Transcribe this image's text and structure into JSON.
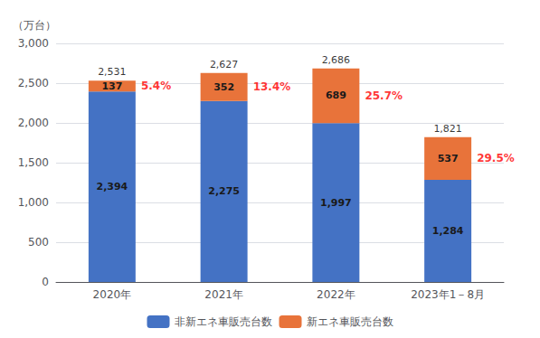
{
  "chart_data": {
    "type": "bar",
    "stacked": true,
    "ylabel": "（万台）",
    "categories": [
      "2020年",
      "2021年",
      "2022年",
      "2023年1－8月"
    ],
    "series": [
      {
        "name": "非新エネ車販売台数",
        "color": "#4472C4",
        "values": [
          2394,
          2275,
          1997,
          1284
        ],
        "value_labels": [
          "2,394",
          "2,275",
          "1,997",
          "1,284"
        ]
      },
      {
        "name": "新エネ車販売台数",
        "color": "#E8733A",
        "values": [
          137,
          352,
          689,
          537
        ],
        "value_labels": [
          "137",
          "352",
          "689",
          "537"
        ]
      }
    ],
    "totals": {
      "values": [
        2531,
        2627,
        2686,
        1821
      ],
      "value_labels": [
        "2,531",
        "2,627",
        "2,686",
        "1,821"
      ]
    },
    "share": {
      "values": [
        5.4,
        13.4,
        25.7,
        29.5
      ],
      "value_labels": [
        "5.4%",
        "13.4%",
        "25.7%",
        "29.5%"
      ],
      "color": "#FF0000"
    },
    "ylim": [
      0,
      3000
    ],
    "yticks": [
      0,
      500,
      {
        "value": 1000,
        "label": "1,000"
      },
      {
        "value": 1500,
        "label": "1,500"
      },
      {
        "value": 2000,
        "label": "2,000"
      },
      {
        "value": 2500,
        "label": "2,500"
      },
      {
        "value": 3000,
        "label": "3,000"
      }
    ],
    "grid": true,
    "legend": "bottom",
    "data_labels": true
  }
}
